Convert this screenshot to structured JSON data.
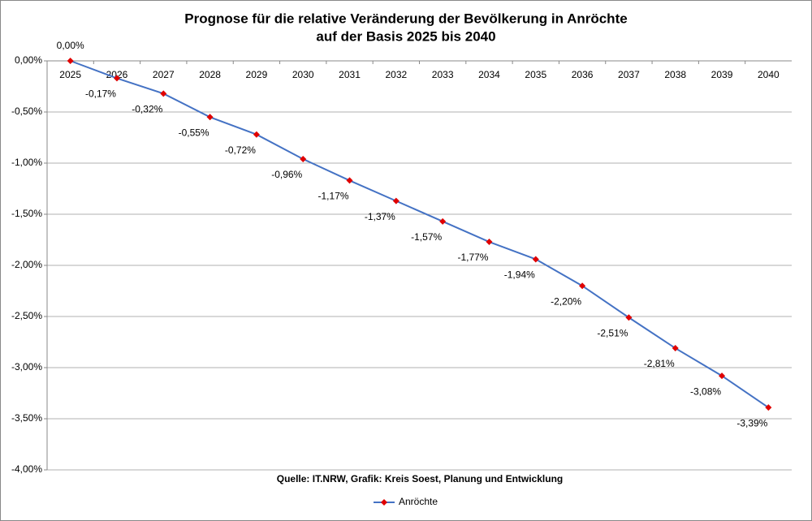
{
  "chart_data": {
    "type": "line",
    "title": [
      "Prognose für die relative Veränderung der Bevölkerung in Anröchte",
      "auf der Basis 2025 bis 2040"
    ],
    "annotation": "Quelle: IT.NRW, Grafik: Kreis Soest, Planung und Entwicklung",
    "categories": [
      "2025",
      "2026",
      "2027",
      "2028",
      "2029",
      "2030",
      "2031",
      "2032",
      "2033",
      "2034",
      "2035",
      "2036",
      "2037",
      "2038",
      "2039",
      "2040"
    ],
    "series": [
      {
        "name": "Anröchte",
        "color": "#4472c4",
        "marker_color": "#e00000",
        "values": [
          0,
          -0.17,
          -0.32,
          -0.55,
          -0.72,
          -0.96,
          -1.17,
          -1.37,
          -1.57,
          -1.77,
          -1.94,
          -2.2,
          -2.51,
          -2.81,
          -3.08,
          -3.39
        ],
        "value_labels": [
          "0,00%",
          "-0,17%",
          "-0,32%",
          "-0,55%",
          "-0,72%",
          "-0,96%",
          "-1,17%",
          "-1,37%",
          "-1,57%",
          "-1,77%",
          "-1,94%",
          "-2,20%",
          "-2,51%",
          "-2,81%",
          "-3,08%",
          "-3,39%"
        ]
      }
    ],
    "ylim": [
      -4,
      0
    ],
    "yticks": [
      {
        "value": 0,
        "label": "0,00%"
      },
      {
        "value": -0.5,
        "label": "-0,50%"
      },
      {
        "value": -1,
        "label": "-1,00%"
      },
      {
        "value": -1.5,
        "label": "-1,50%"
      },
      {
        "value": -2,
        "label": "-2,00%"
      },
      {
        "value": -2.5,
        "label": "-2,50%"
      },
      {
        "value": -3,
        "label": "-3,00%"
      },
      {
        "value": -3.5,
        "label": "-3,50%"
      },
      {
        "value": -4,
        "label": "-4,00%"
      }
    ],
    "grid": true,
    "legend": "bottom"
  }
}
